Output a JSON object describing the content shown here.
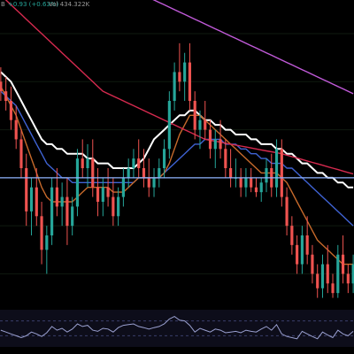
{
  "legend": {
    "ohlc_suffix": "B",
    "change": "+0.93 (+0.63%)",
    "volume": "Vol 434.322K",
    "text_color": "#9a9a9a",
    "change_color": "#26a69a"
  },
  "colors": {
    "background": "#000000",
    "up": "#26a69a",
    "down": "#ef5350",
    "upper_band": "#ffffff",
    "ema_fast": "#c76a2b",
    "ema_mid": "#3f63d4",
    "ema_slow": "#d62a4f",
    "ma_long": "#c15ad9",
    "price_line": "#8fb4ff",
    "grid": "#0f1a0f",
    "osc_line": "#9aa0d0",
    "osc_band": "#3a3f6a",
    "osc_bg": "#0d0d1a"
  },
  "chart_data": {
    "type": "candlestick",
    "price_range": [
      54,
      117
    ],
    "reference_price": 80,
    "candles": [
      [
        100,
        103,
        96,
        98
      ],
      [
        98,
        101,
        94,
        96
      ],
      [
        96,
        99,
        90,
        92
      ],
      [
        92,
        95,
        86,
        88
      ],
      [
        88,
        90,
        80,
        82
      ],
      [
        82,
        85,
        70,
        73
      ],
      [
        73,
        80,
        68,
        78
      ],
      [
        78,
        82,
        70,
        72
      ],
      [
        72,
        75,
        62,
        65
      ],
      [
        65,
        70,
        60,
        68
      ],
      [
        68,
        80,
        66,
        78
      ],
      [
        78,
        82,
        72,
        74
      ],
      [
        74,
        79,
        70,
        76
      ],
      [
        76,
        80,
        66,
        70
      ],
      [
        70,
        76,
        68,
        74
      ],
      [
        74,
        86,
        72,
        84
      ],
      [
        84,
        88,
        80,
        82
      ],
      [
        82,
        87,
        78,
        84
      ],
      [
        84,
        88,
        76,
        78
      ],
      [
        78,
        82,
        72,
        75
      ],
      [
        75,
        80,
        72,
        78
      ],
      [
        78,
        82,
        74,
        76
      ],
      [
        76,
        80,
        70,
        72
      ],
      [
        72,
        78,
        70,
        76
      ],
      [
        76,
        82,
        74,
        80
      ],
      [
        80,
        84,
        78,
        82
      ],
      [
        82,
        86,
        80,
        84
      ],
      [
        84,
        88,
        80,
        82
      ],
      [
        82,
        86,
        78,
        80
      ],
      [
        80,
        84,
        76,
        78
      ],
      [
        78,
        82,
        76,
        80
      ],
      [
        80,
        84,
        78,
        82
      ],
      [
        82,
        88,
        80,
        86
      ],
      [
        86,
        98,
        84,
        96
      ],
      [
        96,
        104,
        94,
        102
      ],
      [
        102,
        108,
        98,
        100
      ],
      [
        100,
        106,
        96,
        104
      ],
      [
        104,
        108,
        94,
        96
      ],
      [
        96,
        98,
        88,
        90
      ],
      [
        90,
        94,
        86,
        92
      ],
      [
        92,
        96,
        88,
        90
      ],
      [
        90,
        92,
        84,
        86
      ],
      [
        86,
        90,
        82,
        88
      ],
      [
        88,
        92,
        84,
        86
      ],
      [
        86,
        88,
        80,
        82
      ],
      [
        82,
        86,
        78,
        80
      ],
      [
        80,
        84,
        78,
        80
      ],
      [
        80,
        82,
        76,
        78
      ],
      [
        78,
        82,
        76,
        80
      ],
      [
        80,
        82,
        77,
        78
      ],
      [
        78,
        80,
        76,
        77
      ],
      [
        77,
        80,
        75,
        79
      ],
      [
        79,
        84,
        77,
        82
      ],
      [
        82,
        85,
        76,
        78
      ],
      [
        78,
        88,
        76,
        86
      ],
      [
        86,
        88,
        74,
        76
      ],
      [
        76,
        78,
        68,
        70
      ],
      [
        70,
        72,
        64,
        66
      ],
      [
        66,
        68,
        60,
        62
      ],
      [
        62,
        70,
        60,
        68
      ],
      [
        68,
        72,
        62,
        64
      ],
      [
        64,
        66,
        58,
        60
      ],
      [
        60,
        62,
        55,
        57
      ],
      [
        57,
        64,
        55,
        62
      ],
      [
        62,
        66,
        56,
        58
      ],
      [
        58,
        60,
        55,
        56
      ],
      [
        56,
        66,
        55,
        64
      ],
      [
        64,
        68,
        58,
        60
      ],
      [
        60,
        62,
        56,
        58
      ],
      [
        58,
        64,
        56,
        62
      ]
    ],
    "series": [
      {
        "name": "",
        "color_key": "upper_band",
        "values": [
          102,
          101,
          100,
          98,
          96,
          94,
          92,
          90,
          88,
          87,
          87,
          86,
          86,
          85,
          85,
          85,
          85,
          84,
          84,
          83,
          83,
          83,
          82,
          82,
          82,
          82,
          82,
          83,
          84,
          86,
          88,
          89,
          90,
          91,
          92,
          93,
          93,
          94,
          94,
          93,
          92,
          92,
          91,
          91,
          90,
          90,
          89,
          89,
          89,
          88,
          88,
          87,
          87,
          87,
          86,
          86,
          85,
          85,
          84,
          83,
          83,
          82,
          81,
          81,
          80,
          80,
          79,
          79,
          78,
          78
        ]
      },
      {
        "name": "",
        "color_key": "ema_mid",
        "values": [
          98,
          97,
          96,
          95,
          93,
          91,
          89,
          87,
          85,
          83,
          82,
          81,
          80,
          80,
          79,
          79,
          79,
          79,
          79,
          79,
          79,
          79,
          79,
          79,
          79,
          79,
          79,
          80,
          80,
          80,
          80,
          80,
          81,
          82,
          83,
          84,
          85,
          86,
          87,
          87,
          88,
          88,
          88,
          88,
          87,
          87,
          87,
          86,
          86,
          85,
          85,
          84,
          84,
          83,
          83,
          83,
          82,
          82,
          81,
          80,
          79,
          78,
          77,
          76,
          75,
          74,
          73,
          72,
          71,
          70
        ]
      },
      {
        "name": "",
        "color_key": "ema_fast",
        "values": [
          99,
          97,
          95,
          93,
          90,
          87,
          84,
          81,
          78,
          76,
          75,
          75,
          75,
          75,
          75,
          76,
          77,
          78,
          78,
          78,
          78,
          78,
          77,
          77,
          77,
          78,
          79,
          80,
          80,
          80,
          80,
          80,
          81,
          83,
          86,
          89,
          91,
          93,
          93,
          93,
          92,
          91,
          90,
          89,
          88,
          87,
          86,
          85,
          84,
          83,
          82,
          81,
          81,
          81,
          81,
          80,
          79,
          77,
          75,
          73,
          71,
          69,
          67,
          66,
          65,
          64,
          63,
          62,
          62,
          62
        ]
      },
      {
        "name": "",
        "color_key": "ema_slow",
        "values": [
          118,
          117,
          116,
          115,
          114,
          113,
          112,
          111,
          110,
          109,
          108,
          107,
          106,
          105,
          104,
          103,
          102,
          101,
          100,
          99,
          98,
          97.5,
          97,
          96.5,
          96,
          95.5,
          95,
          94.5,
          94,
          93.5,
          93,
          92.5,
          92,
          91.5,
          91,
          90.5,
          90,
          89.5,
          89,
          88.5,
          88,
          87.8,
          87.6,
          87.4,
          87.2,
          87,
          86.8,
          86.6,
          86.4,
          86.2,
          86,
          85.8,
          85.6,
          85.4,
          85.2,
          85,
          84.7,
          84.4,
          84.1,
          83.8,
          83.5,
          83.2,
          82.9,
          82.6,
          82.3,
          82,
          81.7,
          81.4,
          81.1,
          80.8
        ]
      },
      {
        "name": "",
        "color_key": "ma_long",
        "values": [
          132,
          131.5,
          131,
          130.5,
          130,
          129.5,
          129,
          128.5,
          128,
          127.5,
          127,
          126.5,
          126,
          125.5,
          125,
          124.5,
          124,
          123.5,
          123,
          122.5,
          122,
          121.5,
          121,
          120.5,
          120,
          119.5,
          119,
          118.5,
          118,
          117.5,
          117,
          116.5,
          116,
          115.5,
          115,
          114.5,
          114,
          113.5,
          113,
          112.5,
          112,
          111.5,
          111,
          110.5,
          110,
          109.5,
          109,
          108.5,
          108,
          107.5,
          107,
          106.5,
          106,
          105.5,
          105,
          104.5,
          104,
          103.5,
          103,
          102.5,
          102,
          101.5,
          101,
          100.5,
          100,
          99.5,
          99,
          98.5,
          98,
          97.5
        ]
      }
    ],
    "oscillator": {
      "range": [
        0,
        100
      ],
      "bands": [
        30,
        70
      ],
      "values": [
        45,
        40,
        35,
        30,
        25,
        30,
        40,
        35,
        28,
        38,
        55,
        45,
        50,
        40,
        48,
        62,
        55,
        58,
        45,
        42,
        50,
        48,
        40,
        52,
        58,
        60,
        62,
        55,
        52,
        48,
        52,
        55,
        62,
        75,
        82,
        72,
        70,
        58,
        40,
        50,
        45,
        40,
        48,
        45,
        38,
        40,
        42,
        38,
        45,
        42,
        40,
        48,
        55,
        45,
        60,
        35,
        28,
        25,
        22,
        42,
        35,
        28,
        22,
        40,
        32,
        25,
        45,
        35,
        30,
        42
      ]
    }
  }
}
